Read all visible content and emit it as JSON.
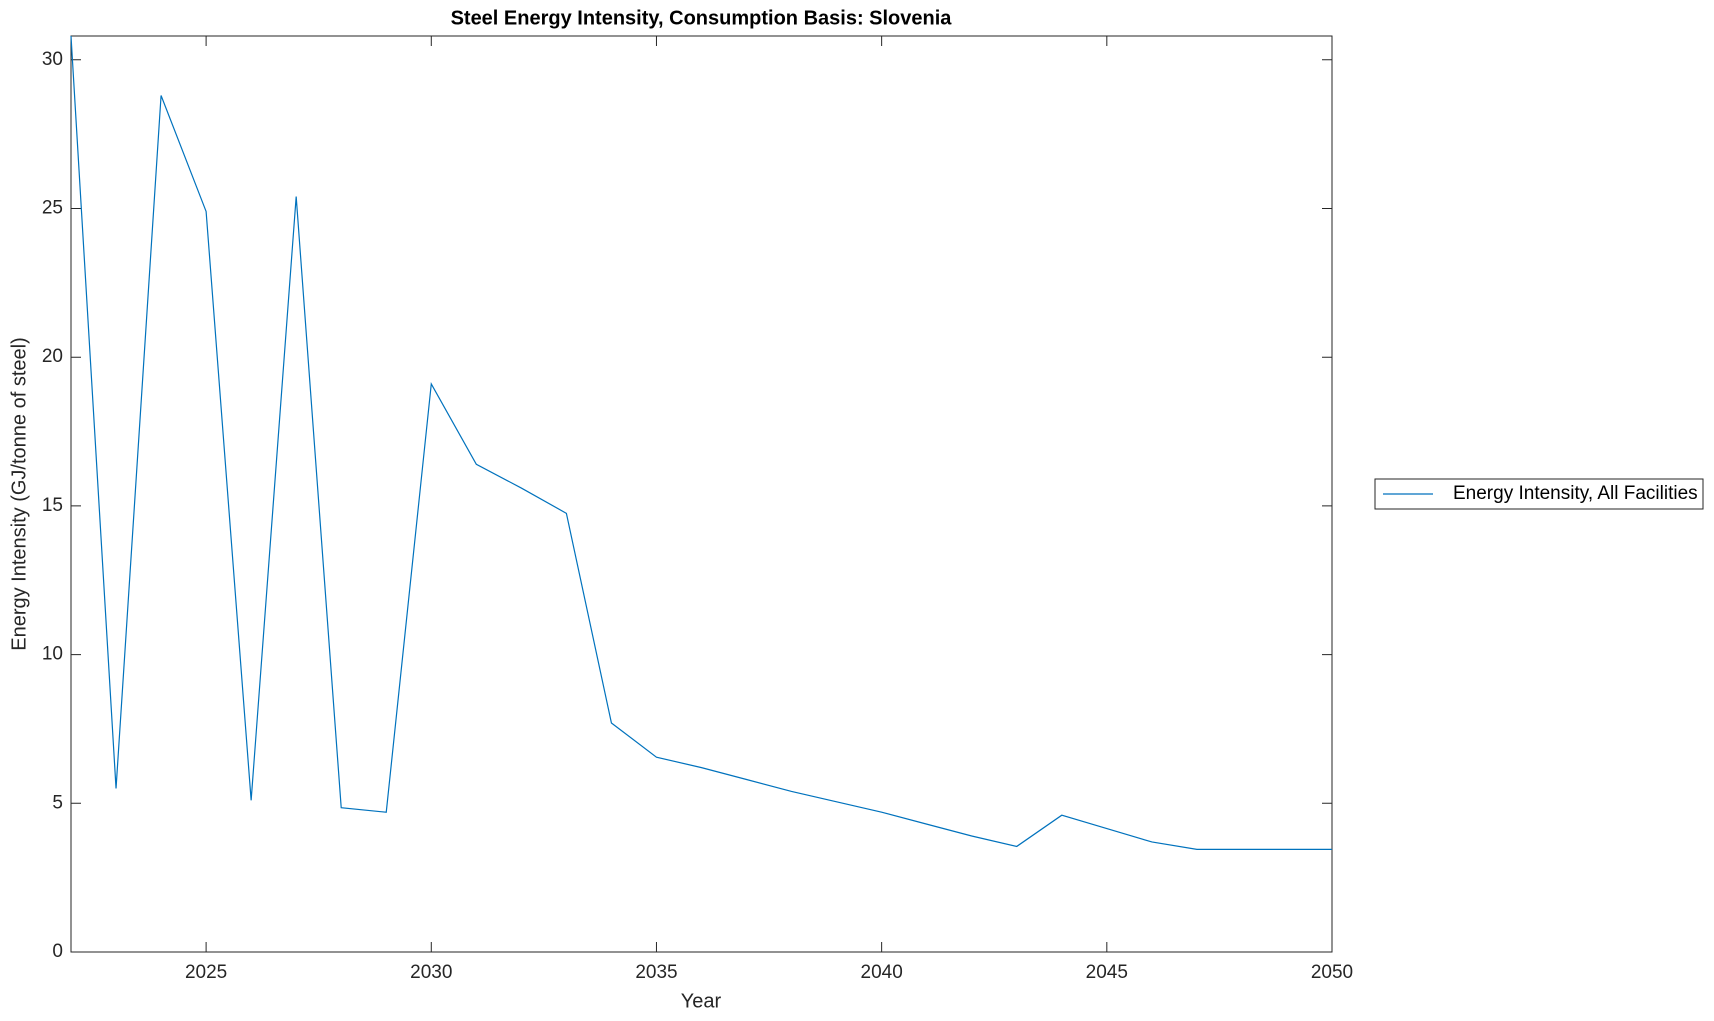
{
  "chart_data": {
    "type": "line",
    "title": "Steel Energy Intensity, Consumption Basis: Slovenia",
    "x_label": "Year",
    "y_label": "Energy Intensity (GJ/tonne of steel)",
    "x": [
      2022,
      2023,
      2024,
      2025,
      2026,
      2027,
      2028,
      2029,
      2030,
      2031,
      2032,
      2033,
      2034,
      2035,
      2036,
      2037,
      2038,
      2039,
      2040,
      2041,
      2042,
      2043,
      2044,
      2045,
      2046,
      2047,
      2048,
      2049,
      2050
    ],
    "series": [
      {
        "name": "Energy Intensity, All Facilities",
        "color": "#0072bd",
        "values": [
          30.8,
          5.5,
          28.8,
          24.9,
          5.1,
          25.4,
          4.85,
          4.7,
          19.1,
          16.4,
          15.6,
          14.75,
          7.7,
          6.55,
          6.2,
          5.8,
          5.4,
          5.05,
          4.7,
          4.3,
          3.9,
          3.55,
          4.6,
          4.15,
          3.7,
          3.45,
          3.45,
          3.45,
          3.45
        ]
      }
    ],
    "xlim": [
      2022,
      2050
    ],
    "xticks": [
      2025,
      2030,
      2035,
      2040,
      2045,
      2050
    ],
    "ylim": [
      0,
      30.8
    ],
    "yticks": [
      0,
      5,
      10,
      15,
      20,
      25,
      30
    ],
    "grid": false,
    "legend": "outside-right"
  }
}
